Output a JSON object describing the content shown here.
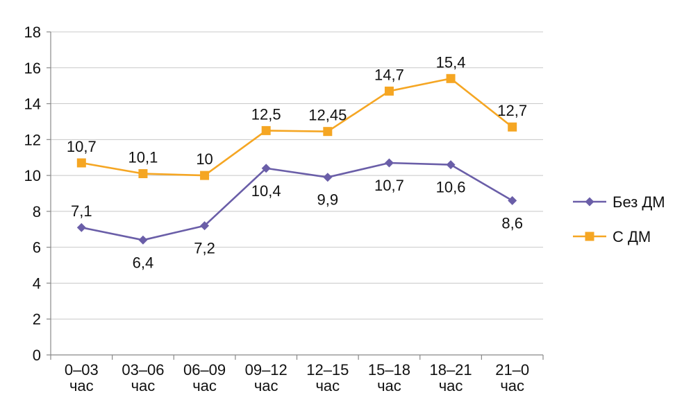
{
  "chart_data": {
    "type": "line",
    "categories": [
      "0–03 час",
      "03–06 час",
      "06–09 час",
      "09–12 час",
      "12–15 час",
      "15–18 час",
      "18–21 час",
      "21–0 час"
    ],
    "category_lines": [
      [
        "0–03",
        "час"
      ],
      [
        "03–06",
        "час"
      ],
      [
        "06–09",
        "час"
      ],
      [
        "09–12",
        "час"
      ],
      [
        "12–15",
        "час"
      ],
      [
        "15–18",
        "час"
      ],
      [
        "18–21",
        "час"
      ],
      [
        "21–0",
        "час"
      ]
    ],
    "series": [
      {
        "name": "Без ДМ",
        "color": "#6a5ea8",
        "marker": "diamond",
        "values": [
          7.1,
          6.4,
          7.2,
          10.4,
          9.9,
          10.7,
          10.6,
          8.6
        ],
        "labels": [
          "7,1",
          "6,4",
          "7,2",
          "10,4",
          "9,9",
          "10,7",
          "10,6",
          "8,6"
        ],
        "label_positions": [
          "above",
          "below",
          "below",
          "below",
          "below",
          "below",
          "below",
          "below"
        ]
      },
      {
        "name": "С ДМ",
        "color": "#f5a623",
        "marker": "square",
        "values": [
          10.7,
          10.1,
          10.0,
          12.5,
          12.45,
          14.7,
          15.4,
          12.7
        ],
        "labels": [
          "10,7",
          "10,1",
          "10",
          "12,5",
          "12,45",
          "14,7",
          "15,4",
          "12,7"
        ],
        "label_positions": [
          "above",
          "above",
          "above",
          "above",
          "above",
          "above",
          "above",
          "above"
        ]
      }
    ],
    "y_ticks": [
      "0",
      "2",
      "4",
      "6",
      "8",
      "10",
      "12",
      "14",
      "16",
      "18"
    ],
    "ylim": [
      0,
      18
    ],
    "grid": "horizontal",
    "legend_position": "right",
    "title": "",
    "xlabel": "",
    "ylabel": ""
  }
}
